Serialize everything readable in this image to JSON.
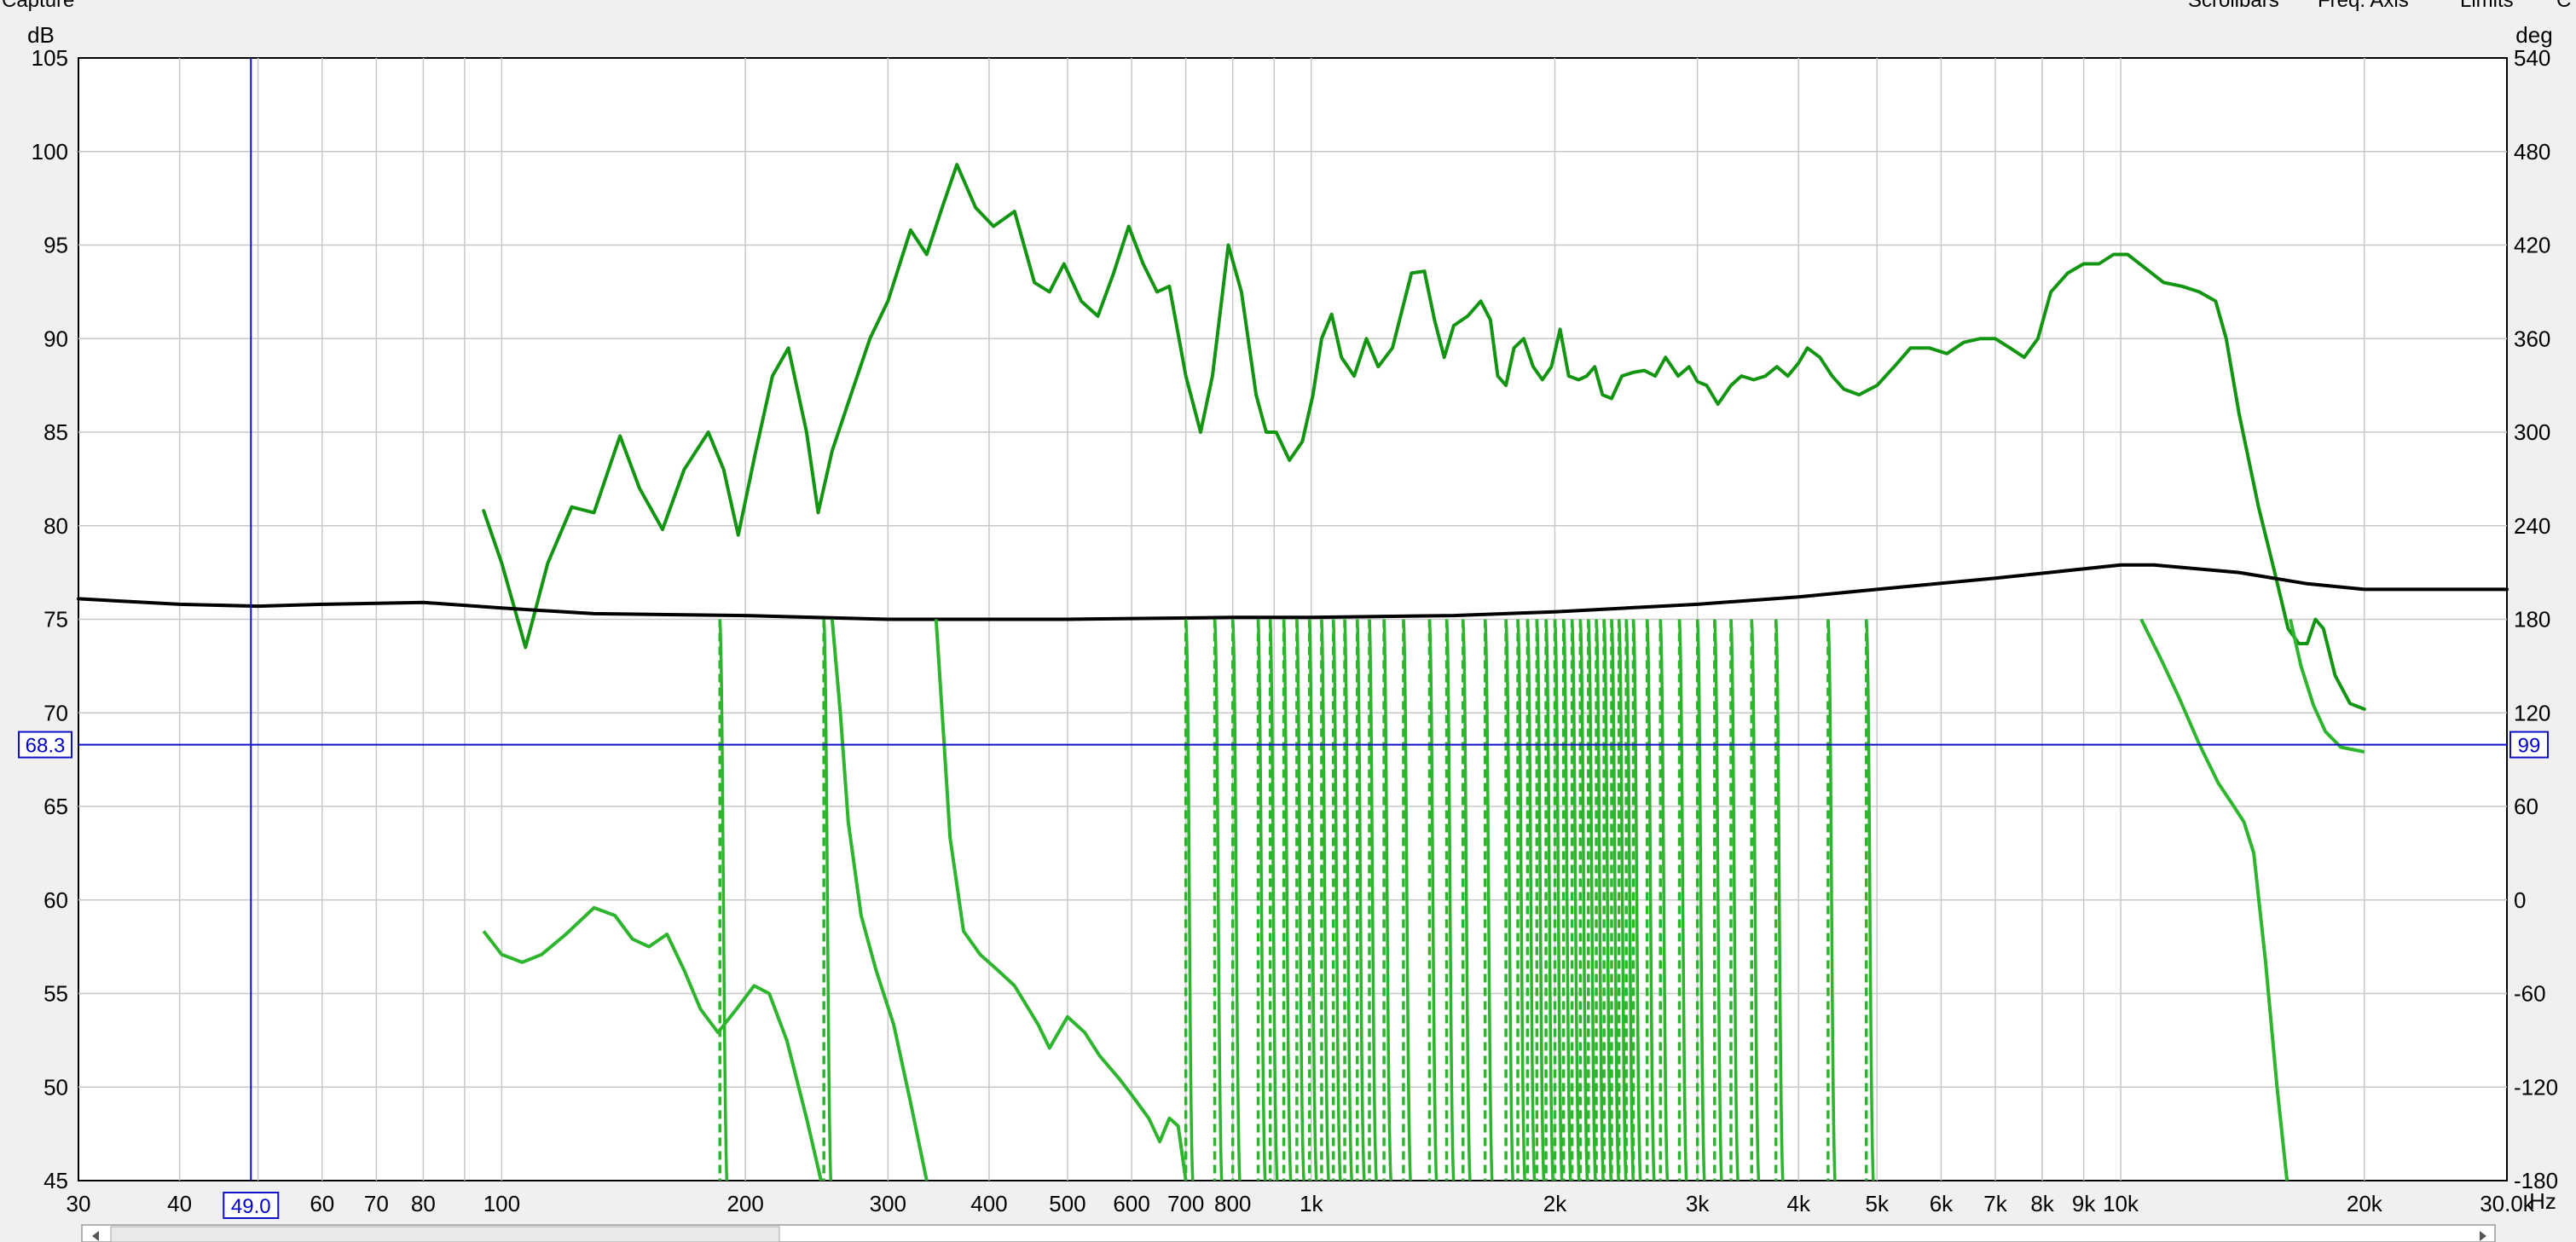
{
  "toolbar": {
    "capture_label": "Capture",
    "scrollbars_label": "Scrollbars",
    "freq_axis_label": "Freq. Axis",
    "limits_label": "Limits",
    "more_label": "C"
  },
  "chart_data": {
    "type": "line",
    "y_unit_label": "dB",
    "y2_unit_label": "deg",
    "x_unit_label": "Hz",
    "x_scale": "log",
    "xlim": [
      30,
      30000
    ],
    "ylim": [
      45,
      105
    ],
    "y2lim": [
      -180,
      540
    ],
    "grid": true,
    "y_ticks": [
      45,
      50,
      55,
      60,
      65,
      70,
      75,
      80,
      85,
      90,
      95,
      100,
      105
    ],
    "y2_ticks": [
      -180,
      -120,
      -60,
      0,
      60,
      120,
      180,
      240,
      300,
      360,
      420,
      480,
      540
    ],
    "x_ticks": [
      {
        "v": 30,
        "label": "30"
      },
      {
        "v": 40,
        "label": "40"
      },
      {
        "v": 60,
        "label": "60"
      },
      {
        "v": 70,
        "label": "70"
      },
      {
        "v": 80,
        "label": "80"
      },
      {
        "v": 100,
        "label": "100"
      },
      {
        "v": 200,
        "label": "200"
      },
      {
        "v": 300,
        "label": "300"
      },
      {
        "v": 400,
        "label": "400"
      },
      {
        "v": 500,
        "label": "500"
      },
      {
        "v": 600,
        "label": "600"
      },
      {
        "v": 700,
        "label": "700"
      },
      {
        "v": 800,
        "label": "800"
      },
      {
        "v": 1000,
        "label": "1k"
      },
      {
        "v": 2000,
        "label": "2k"
      },
      {
        "v": 3000,
        "label": "3k"
      },
      {
        "v": 4000,
        "label": "4k"
      },
      {
        "v": 5000,
        "label": "5k"
      },
      {
        "v": 6000,
        "label": "6k"
      },
      {
        "v": 7000,
        "label": "7k"
      },
      {
        "v": 8000,
        "label": "8k"
      },
      {
        "v": 9000,
        "label": "9k"
      },
      {
        "v": 10000,
        "label": "10k"
      },
      {
        "v": 20000,
        "label": "20k"
      },
      {
        "v": 30000,
        "label": "30.0k"
      }
    ],
    "cursor": {
      "x": 49,
      "x_label": "49.0",
      "y": 68.3,
      "y_label": "68.3",
      "y2_label": "99"
    },
    "series": [
      {
        "color": "#129612",
        "axis": "left",
        "points": [
          [
            95,
            80.8
          ],
          [
            100,
            78
          ],
          [
            107,
            73.5
          ],
          [
            114,
            78
          ],
          [
            122,
            81
          ],
          [
            130,
            80.7
          ],
          [
            140,
            84.8
          ],
          [
            148,
            82
          ],
          [
            158,
            79.8
          ],
          [
            168,
            83
          ],
          [
            180,
            85
          ],
          [
            188,
            83
          ],
          [
            196,
            79.5
          ],
          [
            206,
            84
          ],
          [
            216,
            88
          ],
          [
            226,
            89.5
          ],
          [
            238,
            85
          ],
          [
            246,
            80.7
          ],
          [
            256,
            84
          ],
          [
            270,
            87
          ],
          [
            285,
            90
          ],
          [
            300,
            92
          ],
          [
            320,
            95.8
          ],
          [
            335,
            94.5
          ],
          [
            350,
            97
          ],
          [
            365,
            99.3
          ],
          [
            385,
            97
          ],
          [
            405,
            96
          ],
          [
            430,
            96.8
          ],
          [
            455,
            93
          ],
          [
            475,
            92.5
          ],
          [
            495,
            94
          ],
          [
            520,
            92
          ],
          [
            545,
            91.2
          ],
          [
            570,
            93.5
          ],
          [
            595,
            96
          ],
          [
            620,
            94
          ],
          [
            645,
            92.5
          ],
          [
            668,
            92.8
          ],
          [
            700,
            88
          ],
          [
            730,
            85
          ],
          [
            755,
            88
          ],
          [
            790,
            95
          ],
          [
            820,
            92.5
          ],
          [
            855,
            87
          ],
          [
            880,
            85
          ],
          [
            905,
            85
          ],
          [
            940,
            83.5
          ],
          [
            975,
            84.5
          ],
          [
            1005,
            87
          ],
          [
            1030,
            90
          ],
          [
            1060,
            91.3
          ],
          [
            1090,
            89
          ],
          [
            1130,
            88
          ],
          [
            1170,
            90
          ],
          [
            1210,
            88.5
          ],
          [
            1260,
            89.5
          ],
          [
            1330,
            93.5
          ],
          [
            1380,
            93.6
          ],
          [
            1420,
            91
          ],
          [
            1460,
            89
          ],
          [
            1500,
            90.7
          ],
          [
            1560,
            91.2
          ],
          [
            1620,
            92
          ],
          [
            1665,
            91
          ],
          [
            1700,
            88
          ],
          [
            1740,
            87.5
          ],
          [
            1780,
            89.5
          ],
          [
            1830,
            90
          ],
          [
            1880,
            88.5
          ],
          [
            1930,
            87.8
          ],
          [
            1980,
            88.5
          ],
          [
            2030,
            90.5
          ],
          [
            2080,
            88
          ],
          [
            2140,
            87.8
          ],
          [
            2190,
            88
          ],
          [
            2240,
            88.5
          ],
          [
            2290,
            87
          ],
          [
            2350,
            86.8
          ],
          [
            2420,
            88
          ],
          [
            2500,
            88.2
          ],
          [
            2580,
            88.3
          ],
          [
            2660,
            88
          ],
          [
            2740,
            89
          ],
          [
            2840,
            88
          ],
          [
            2930,
            88.5
          ],
          [
            3000,
            87.7
          ],
          [
            3080,
            87.5
          ],
          [
            3180,
            86.5
          ],
          [
            3300,
            87.5
          ],
          [
            3400,
            88
          ],
          [
            3520,
            87.8
          ],
          [
            3640,
            88
          ],
          [
            3760,
            88.5
          ],
          [
            3880,
            88
          ],
          [
            4000,
            88.7
          ],
          [
            4100,
            89.5
          ],
          [
            4250,
            89
          ],
          [
            4400,
            88
          ],
          [
            4550,
            87.3
          ],
          [
            4750,
            87
          ],
          [
            5000,
            87.5
          ],
          [
            5250,
            88.5
          ],
          [
            5500,
            89.5
          ],
          [
            5800,
            89.5
          ],
          [
            6100,
            89.2
          ],
          [
            6400,
            89.8
          ],
          [
            6700,
            90
          ],
          [
            7000,
            90
          ],
          [
            7300,
            89.5
          ],
          [
            7600,
            89
          ],
          [
            7900,
            90
          ],
          [
            8200,
            92.5
          ],
          [
            8600,
            93.5
          ],
          [
            9000,
            94
          ],
          [
            9400,
            94
          ],
          [
            9800,
            94.5
          ],
          [
            10200,
            94.5
          ],
          [
            10700,
            93.8
          ],
          [
            11300,
            93
          ],
          [
            11900,
            92.8
          ],
          [
            12500,
            92.5
          ],
          [
            13100,
            92
          ],
          [
            13500,
            90
          ],
          [
            14000,
            86
          ],
          [
            14800,
            81
          ],
          [
            15500,
            77.5
          ],
          [
            16100,
            74.5
          ],
          [
            16600,
            73.7
          ],
          [
            17000,
            73.7
          ],
          [
            17400,
            75
          ],
          [
            17800,
            74.5
          ],
          [
            18400,
            72
          ],
          [
            19200,
            70.5
          ],
          [
            20000,
            70.2
          ]
        ]
      },
      {
        "color": "#000000",
        "axis": "left",
        "points": [
          [
            30,
            76.1
          ],
          [
            40,
            75.8
          ],
          [
            50,
            75.7
          ],
          [
            60,
            75.8
          ],
          [
            80,
            75.9
          ],
          [
            100,
            75.6
          ],
          [
            130,
            75.3
          ],
          [
            200,
            75.2
          ],
          [
            300,
            75.0
          ],
          [
            500,
            75.0
          ],
          [
            800,
            75.1
          ],
          [
            1000,
            75.1
          ],
          [
            1500,
            75.2
          ],
          [
            2000,
            75.4
          ],
          [
            3000,
            75.8
          ],
          [
            4000,
            76.2
          ],
          [
            5000,
            76.6
          ],
          [
            7000,
            77.2
          ],
          [
            10000,
            77.9
          ],
          [
            11000,
            77.9
          ],
          [
            14000,
            77.5
          ],
          [
            17000,
            76.9
          ],
          [
            20000,
            76.6
          ],
          [
            30000,
            76.6
          ]
        ]
      },
      {
        "color": "#2db52d",
        "axis": "right",
        "segments": [
          [
            [
              95,
              -20
            ],
            [
              100,
              -35
            ],
            [
              106,
              -40
            ],
            [
              112,
              -35
            ],
            [
              120,
              -22
            ],
            [
              130,
              -5
            ],
            [
              138,
              -10
            ],
            [
              145,
              -25
            ],
            [
              152,
              -30
            ],
            [
              160,
              -22
            ],
            [
              168,
              -45
            ],
            [
              176,
              -70
            ],
            [
              185,
              -85
            ],
            [
              195,
              -70
            ],
            [
              205,
              -55
            ],
            [
              214,
              -60
            ],
            [
              225,
              -90
            ],
            [
              238,
              -140
            ],
            [
              248,
              -180
            ]
          ],
          [
            [
              256,
              180
            ],
            [
              262,
              120
            ],
            [
              268,
              50
            ],
            [
              278,
              -10
            ],
            [
              290,
              -45
            ],
            [
              305,
              -80
            ],
            [
              320,
              -130
            ],
            [
              335,
              -180
            ]
          ],
          [
            [
              344,
              180
            ],
            [
              350,
              120
            ],
            [
              358,
              40
            ],
            [
              372,
              -20
            ],
            [
              390,
              -35
            ],
            [
              410,
              -45
            ],
            [
              430,
              -55
            ],
            [
              460,
              -80
            ],
            [
              475,
              -95
            ],
            [
              500,
              -75
            ],
            [
              525,
              -85
            ],
            [
              548,
              -100
            ],
            [
              580,
              -115
            ],
            [
              600,
              -125
            ],
            [
              630,
              -140
            ],
            [
              650,
              -155
            ],
            [
              668,
              -140
            ],
            [
              685,
              -145
            ],
            [
              700,
              -180
            ]
          ]
        ]
      },
      {
        "color": "#2db52d",
        "axis": "right",
        "segments": [
          [
            [
              10600,
              180
            ],
            [
              11200,
              155
            ],
            [
              11800,
              130
            ],
            [
              12500,
              100
            ],
            [
              13200,
              75
            ],
            [
              13800,
              60
            ],
            [
              14200,
              50
            ],
            [
              14600,
              30
            ],
            [
              15100,
              -40
            ],
            [
              15600,
              -120
            ],
            [
              16050,
              -180
            ]
          ],
          [
            [
              16200,
              180
            ],
            [
              16700,
              150
            ],
            [
              17300,
              125
            ],
            [
              17900,
              108
            ],
            [
              18700,
              98
            ],
            [
              20000,
              95
            ]
          ]
        ]
      }
    ],
    "phase_wraps": [
      {
        "f": 186,
        "a": 0.45,
        "b": 0.55
      },
      {
        "f": 250,
        "a": 0.45,
        "b": 0.55
      },
      {
        "f": 700,
        "a": 0.5,
        "b": 0.5
      },
      {
        "f": 760,
        "a": 0.48,
        "b": 0.5
      },
      {
        "f": 800,
        "a": 0.46,
        "b": 0.5
      },
      {
        "f": 860,
        "a": 0.4,
        "b": 0.5
      },
      {
        "f": 890,
        "a": 0.4,
        "b": 0.45
      },
      {
        "f": 925,
        "a": 0.4,
        "b": 0.45
      },
      {
        "f": 960,
        "a": 0.4,
        "b": 0.45
      },
      {
        "f": 995,
        "a": 0.4,
        "b": 0.45
      },
      {
        "f": 1030,
        "a": 0.4,
        "b": 0.45
      },
      {
        "f": 1065,
        "a": 0.4,
        "b": 0.45
      },
      {
        "f": 1100,
        "a": 0.4,
        "b": 0.45
      },
      {
        "f": 1140,
        "a": 0.4,
        "b": 0.45
      },
      {
        "f": 1180,
        "a": 0.4,
        "b": 0.45
      },
      {
        "f": 1230,
        "a": 0.4,
        "b": 0.45
      },
      {
        "f": 1300,
        "a": 0.45,
        "b": 0.5
      },
      {
        "f": 1400,
        "a": 0.45,
        "b": 0.5
      },
      {
        "f": 1470,
        "a": 0.45,
        "b": 0.5
      },
      {
        "f": 1540,
        "a": 0.45,
        "b": 0.5
      },
      {
        "f": 1640,
        "a": 0.45,
        "b": 0.5
      },
      {
        "f": 1740,
        "a": 0.45,
        "b": 0.5
      },
      {
        "f": 1800,
        "a": 0.45,
        "b": 0.5
      },
      {
        "f": 1850,
        "a": 0.45,
        "b": 0.5
      },
      {
        "f": 1900,
        "a": 0.45,
        "b": 0.5
      },
      {
        "f": 1950,
        "a": 0.45,
        "b": 0.5
      },
      {
        "f": 2000,
        "a": 0.45,
        "b": 0.5
      },
      {
        "f": 2050,
        "a": 0.45,
        "b": 0.5
      },
      {
        "f": 2100,
        "a": 0.45,
        "b": 0.5
      },
      {
        "f": 2150,
        "a": 0.45,
        "b": 0.5
      },
      {
        "f": 2200,
        "a": 0.45,
        "b": 0.5
      },
      {
        "f": 2250,
        "a": 0.45,
        "b": 0.5
      },
      {
        "f": 2300,
        "a": 0.45,
        "b": 0.5
      },
      {
        "f": 2350,
        "a": 0.45,
        "b": 0.5
      },
      {
        "f": 2400,
        "a": 0.45,
        "b": 0.5
      },
      {
        "f": 2450,
        "a": 0.45,
        "b": 0.5
      },
      {
        "f": 2500,
        "a": 0.45,
        "b": 0.5
      },
      {
        "f": 2600,
        "a": 0.45,
        "b": 0.5
      },
      {
        "f": 2700,
        "a": 0.45,
        "b": 0.5
      },
      {
        "f": 2850,
        "a": 0.45,
        "b": 0.5
      },
      {
        "f": 3000,
        "a": 0.45,
        "b": 0.5
      },
      {
        "f": 3150,
        "a": 0.45,
        "b": 0.5
      },
      {
        "f": 3300,
        "a": 0.45,
        "b": 0.5
      },
      {
        "f": 3500,
        "a": 0.45,
        "b": 0.5
      },
      {
        "f": 3750,
        "a": 0.45,
        "b": 0.5
      },
      {
        "f": 4350,
        "a": 0.5,
        "b": 0.5
      },
      {
        "f": 4850,
        "a": 0.5,
        "b": 0.5
      }
    ]
  }
}
